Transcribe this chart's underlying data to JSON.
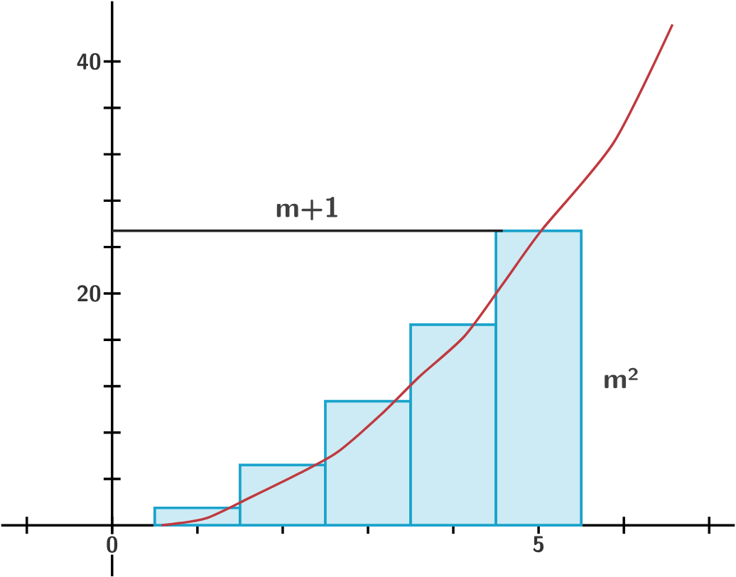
{
  "chart_data": {
    "type": "bar",
    "series": [
      {
        "color": "#1aa3cc",
        "x": [
          1,
          2,
          3,
          4,
          5
        ],
        "values": [
          1.5,
          5.2,
          10.7,
          17.3,
          25.4
        ]
      },
      {
        "type": "line",
        "color": "#c0393f",
        "x": [
          0.58,
          1.1,
          1.62,
          2.2,
          2.64,
          3.16,
          3.6,
          4.13,
          4.58,
          5.03,
          5.88,
          6.57
        ],
        "values": [
          0,
          0.6,
          2.4,
          4.5,
          6.3,
          9.6,
          12.8,
          16.3,
          20.8,
          25.4,
          33.0,
          43.2
        ]
      },
      {
        "type": "line",
        "color": "#222222",
        "x": [
          0,
          4.58
        ],
        "values": [
          25.4,
          25.4
        ]
      }
    ],
    "annotations": [
      "m+1",
      "m²"
    ],
    "xlim": [
      -1.3,
      7.3
    ],
    "ylim": [
      -4.4,
      45.2
    ],
    "xticks": [
      {
        "value": -1,
        "label": null
      },
      {
        "value": 0,
        "label": "0"
      },
      {
        "value": 1,
        "label": null
      },
      {
        "value": 2,
        "label": null
      },
      {
        "value": 3,
        "label": null
      },
      {
        "value": 4,
        "label": null
      },
      {
        "value": 5,
        "label": "5"
      },
      {
        "value": 6,
        "label": null
      },
      {
        "value": 7,
        "label": null
      }
    ],
    "yticks": [
      {
        "value": 4,
        "label": null
      },
      {
        "value": 8,
        "label": null
      },
      {
        "value": 12,
        "label": null
      },
      {
        "value": 16,
        "label": null
      },
      {
        "value": 20,
        "label": "20"
      },
      {
        "value": 24,
        "label": null
      },
      {
        "value": 28,
        "label": null
      },
      {
        "value": 32,
        "label": null
      },
      {
        "value": 36,
        "label": null
      },
      {
        "value": 40,
        "label": "40"
      }
    ]
  }
}
